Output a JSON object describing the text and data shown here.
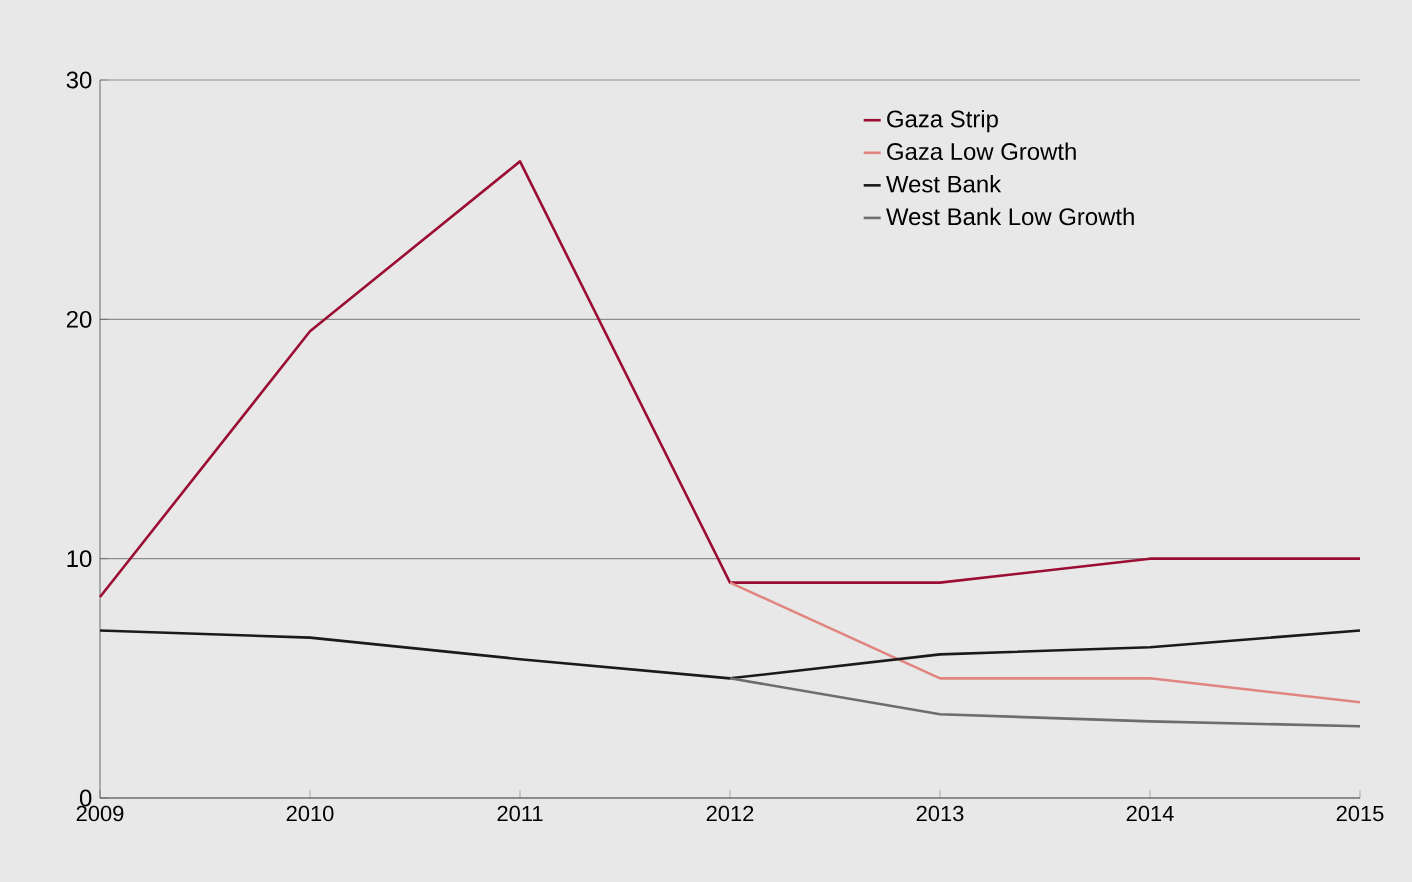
{
  "chart_data": {
    "type": "line",
    "categories": [
      "2009",
      "2010",
      "2011",
      "2012",
      "2013",
      "2014",
      "2015"
    ],
    "ylim": [
      0,
      30
    ],
    "yticks": [
      0,
      10,
      20,
      30
    ],
    "grid": "y",
    "legend": "top right",
    "marker": "none",
    "line_style": "solid",
    "series": [
      {
        "name": "Gaza Strip",
        "color": "#9b0d32",
        "values": [
          8.4,
          19.5,
          26.6,
          9,
          9,
          10,
          10
        ]
      },
      {
        "name": "Gaza Low Growth",
        "color": "#e0857f",
        "values": [
          null,
          null,
          null,
          9,
          5,
          5,
          4
        ]
      },
      {
        "name": "West Bank",
        "color": "#1a1a1a",
        "values": [
          7,
          6.7,
          5.8,
          5,
          6,
          6.3,
          7
        ]
      },
      {
        "name": "West Bank Low Growth",
        "color": "#6d6d6d",
        "values": [
          null,
          null,
          null,
          5,
          3.5,
          3.2,
          3
        ]
      }
    ]
  }
}
